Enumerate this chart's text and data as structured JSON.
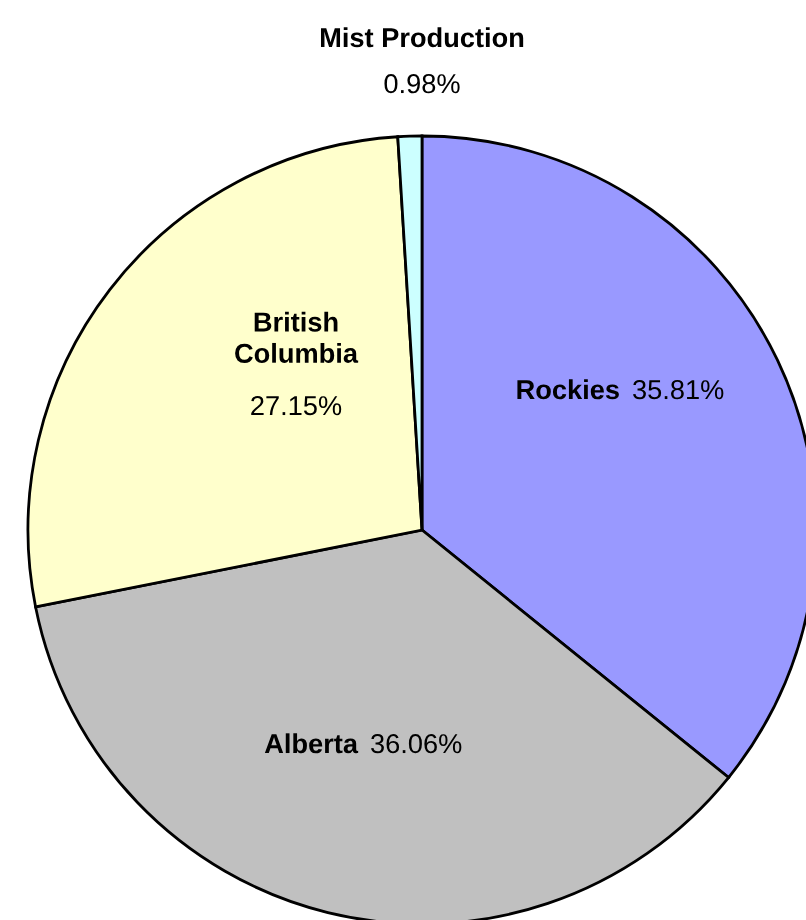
{
  "chart_data": {
    "type": "pie",
    "categories": [
      "Rockies",
      "Alberta",
      "British Columbia",
      "Mist Production"
    ],
    "values": [
      35.81,
      36.06,
      27.15,
      0.98
    ],
    "colors": [
      "#9999ff",
      "#c0c0c0",
      "#ffffcc",
      "#ccffff"
    ],
    "value_labels": [
      "35.81%",
      "36.06%",
      "27.15%",
      "0.98%"
    ]
  }
}
